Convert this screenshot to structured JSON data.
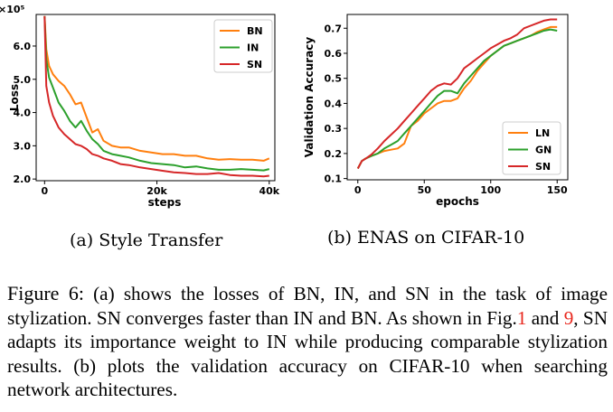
{
  "figure": {
    "caption_lead": "Figure 6:",
    "caption_parts": [
      "(a) shows the losses of BN, IN, and SN in the task of image stylization.  SN converges faster than IN and BN. As shown in Fig.",
      "1",
      " and ",
      "9",
      ", SN adapts its importance weight to IN while producing comparable stylization results. (b) plots the validation accuracy on CIFAR-10 when searching network architectures."
    ],
    "subcaption_a": "(a) Style Transfer",
    "subcaption_b": "(b) ENAS on CIFAR-10"
  },
  "chart_data": [
    {
      "type": "line",
      "title": "",
      "xlabel": "steps",
      "ylabel": "Loss",
      "scale_label": "×10⁵",
      "xlim": [
        -1500,
        41000
      ],
      "ylim": [
        1.95,
        6.95
      ],
      "xticks": [
        0,
        20000,
        40000
      ],
      "xtick_labels": [
        "0",
        "20k",
        "40k"
      ],
      "yticks": [
        2.0,
        3.0,
        4.0,
        5.0,
        6.0
      ],
      "ytick_labels": [
        "2.0",
        "3.0",
        "4.0",
        "5.0",
        "6.0"
      ],
      "grid": false,
      "legend": "top-right",
      "series": [
        {
          "name": "BN",
          "color": "#ff7f0e",
          "x": [
            0,
            300,
            800,
            1500,
            2500,
            3500,
            4500,
            5500,
            6500,
            7500,
            8500,
            9500,
            10500,
            12000,
            13500,
            15000,
            17000,
            19000,
            21000,
            23000,
            25000,
            27000,
            29000,
            31000,
            33000,
            35000,
            37000,
            39000,
            40000
          ],
          "y": [
            6.9,
            5.9,
            5.4,
            5.15,
            4.95,
            4.8,
            4.55,
            4.25,
            4.3,
            3.85,
            3.4,
            3.5,
            3.15,
            3.0,
            2.95,
            2.95,
            2.85,
            2.8,
            2.75,
            2.75,
            2.7,
            2.7,
            2.62,
            2.58,
            2.6,
            2.58,
            2.58,
            2.55,
            2.62
          ]
        },
        {
          "name": "IN",
          "color": "#2ca02c",
          "x": [
            0,
            300,
            800,
            1500,
            2500,
            3500,
            4500,
            5500,
            6500,
            7500,
            8500,
            9500,
            10500,
            12000,
            13500,
            15000,
            17000,
            19000,
            21000,
            23000,
            25000,
            27000,
            29000,
            31000,
            33000,
            35000,
            37000,
            39000,
            40000
          ],
          "y": [
            6.9,
            5.6,
            5.05,
            4.75,
            4.3,
            4.05,
            3.75,
            3.55,
            3.75,
            3.45,
            3.2,
            3.05,
            2.85,
            2.75,
            2.7,
            2.65,
            2.55,
            2.48,
            2.45,
            2.42,
            2.35,
            2.38,
            2.32,
            2.28,
            2.28,
            2.3,
            2.28,
            2.26,
            2.3
          ]
        },
        {
          "name": "SN",
          "color": "#d62728",
          "x": [
            0,
            300,
            800,
            1500,
            2500,
            3500,
            4500,
            5500,
            6500,
            7500,
            8500,
            9500,
            10500,
            12000,
            13500,
            15000,
            17000,
            19000,
            21000,
            23000,
            25000,
            27000,
            29000,
            31000,
            33000,
            35000,
            37000,
            39000,
            40000
          ],
          "y": [
            6.9,
            4.8,
            4.3,
            3.9,
            3.55,
            3.35,
            3.2,
            3.05,
            3.0,
            2.9,
            2.75,
            2.7,
            2.62,
            2.55,
            2.45,
            2.42,
            2.35,
            2.3,
            2.25,
            2.2,
            2.18,
            2.15,
            2.15,
            2.18,
            2.12,
            2.1,
            2.1,
            2.08,
            2.1
          ]
        }
      ]
    },
    {
      "type": "line",
      "title": "",
      "xlabel": "epochs",
      "ylabel": "Validation Accuracy",
      "xlim": [
        -8,
        158
      ],
      "ylim": [
        0.095,
        0.755
      ],
      "xticks": [
        0,
        50,
        100,
        150
      ],
      "xtick_labels": [
        "0",
        "50",
        "100",
        "150"
      ],
      "yticks": [
        0.1,
        0.2,
        0.3,
        0.4,
        0.5,
        0.6,
        0.7
      ],
      "ytick_labels": [
        "0.1",
        "0.2",
        "0.3",
        "0.4",
        "0.5",
        "0.6",
        "0.7"
      ],
      "grid": false,
      "legend": "bottom-right",
      "series": [
        {
          "name": "LN",
          "color": "#ff7f0e",
          "x": [
            0,
            3,
            6,
            10,
            15,
            20,
            25,
            30,
            35,
            40,
            45,
            50,
            55,
            60,
            65,
            70,
            75,
            80,
            85,
            90,
            95,
            100,
            105,
            110,
            115,
            120,
            125,
            130,
            135,
            140,
            145,
            150
          ],
          "y": [
            0.14,
            0.17,
            0.18,
            0.19,
            0.2,
            0.21,
            0.215,
            0.22,
            0.24,
            0.31,
            0.33,
            0.36,
            0.38,
            0.4,
            0.41,
            0.41,
            0.42,
            0.46,
            0.49,
            0.53,
            0.56,
            0.59,
            0.61,
            0.63,
            0.64,
            0.65,
            0.66,
            0.67,
            0.685,
            0.695,
            0.705,
            0.705
          ]
        },
        {
          "name": "GN",
          "color": "#2ca02c",
          "x": [
            0,
            3,
            6,
            10,
            15,
            20,
            25,
            30,
            35,
            40,
            45,
            50,
            55,
            60,
            65,
            70,
            75,
            80,
            85,
            90,
            95,
            100,
            105,
            110,
            115,
            120,
            125,
            130,
            135,
            140,
            145,
            150
          ],
          "y": [
            0.14,
            0.17,
            0.18,
            0.19,
            0.2,
            0.22,
            0.235,
            0.25,
            0.28,
            0.31,
            0.34,
            0.37,
            0.4,
            0.43,
            0.45,
            0.45,
            0.44,
            0.48,
            0.51,
            0.54,
            0.57,
            0.59,
            0.61,
            0.63,
            0.64,
            0.65,
            0.66,
            0.67,
            0.68,
            0.69,
            0.695,
            0.69
          ]
        },
        {
          "name": "SN",
          "color": "#d62728",
          "x": [
            0,
            3,
            6,
            10,
            15,
            20,
            25,
            30,
            35,
            40,
            45,
            50,
            55,
            60,
            65,
            70,
            75,
            80,
            85,
            90,
            95,
            100,
            105,
            110,
            115,
            120,
            125,
            130,
            135,
            140,
            145,
            150
          ],
          "y": [
            0.14,
            0.17,
            0.18,
            0.195,
            0.22,
            0.25,
            0.275,
            0.3,
            0.33,
            0.36,
            0.39,
            0.42,
            0.45,
            0.47,
            0.48,
            0.475,
            0.5,
            0.54,
            0.56,
            0.58,
            0.6,
            0.62,
            0.635,
            0.65,
            0.66,
            0.675,
            0.7,
            0.71,
            0.72,
            0.73,
            0.735,
            0.735
          ]
        }
      ]
    }
  ]
}
